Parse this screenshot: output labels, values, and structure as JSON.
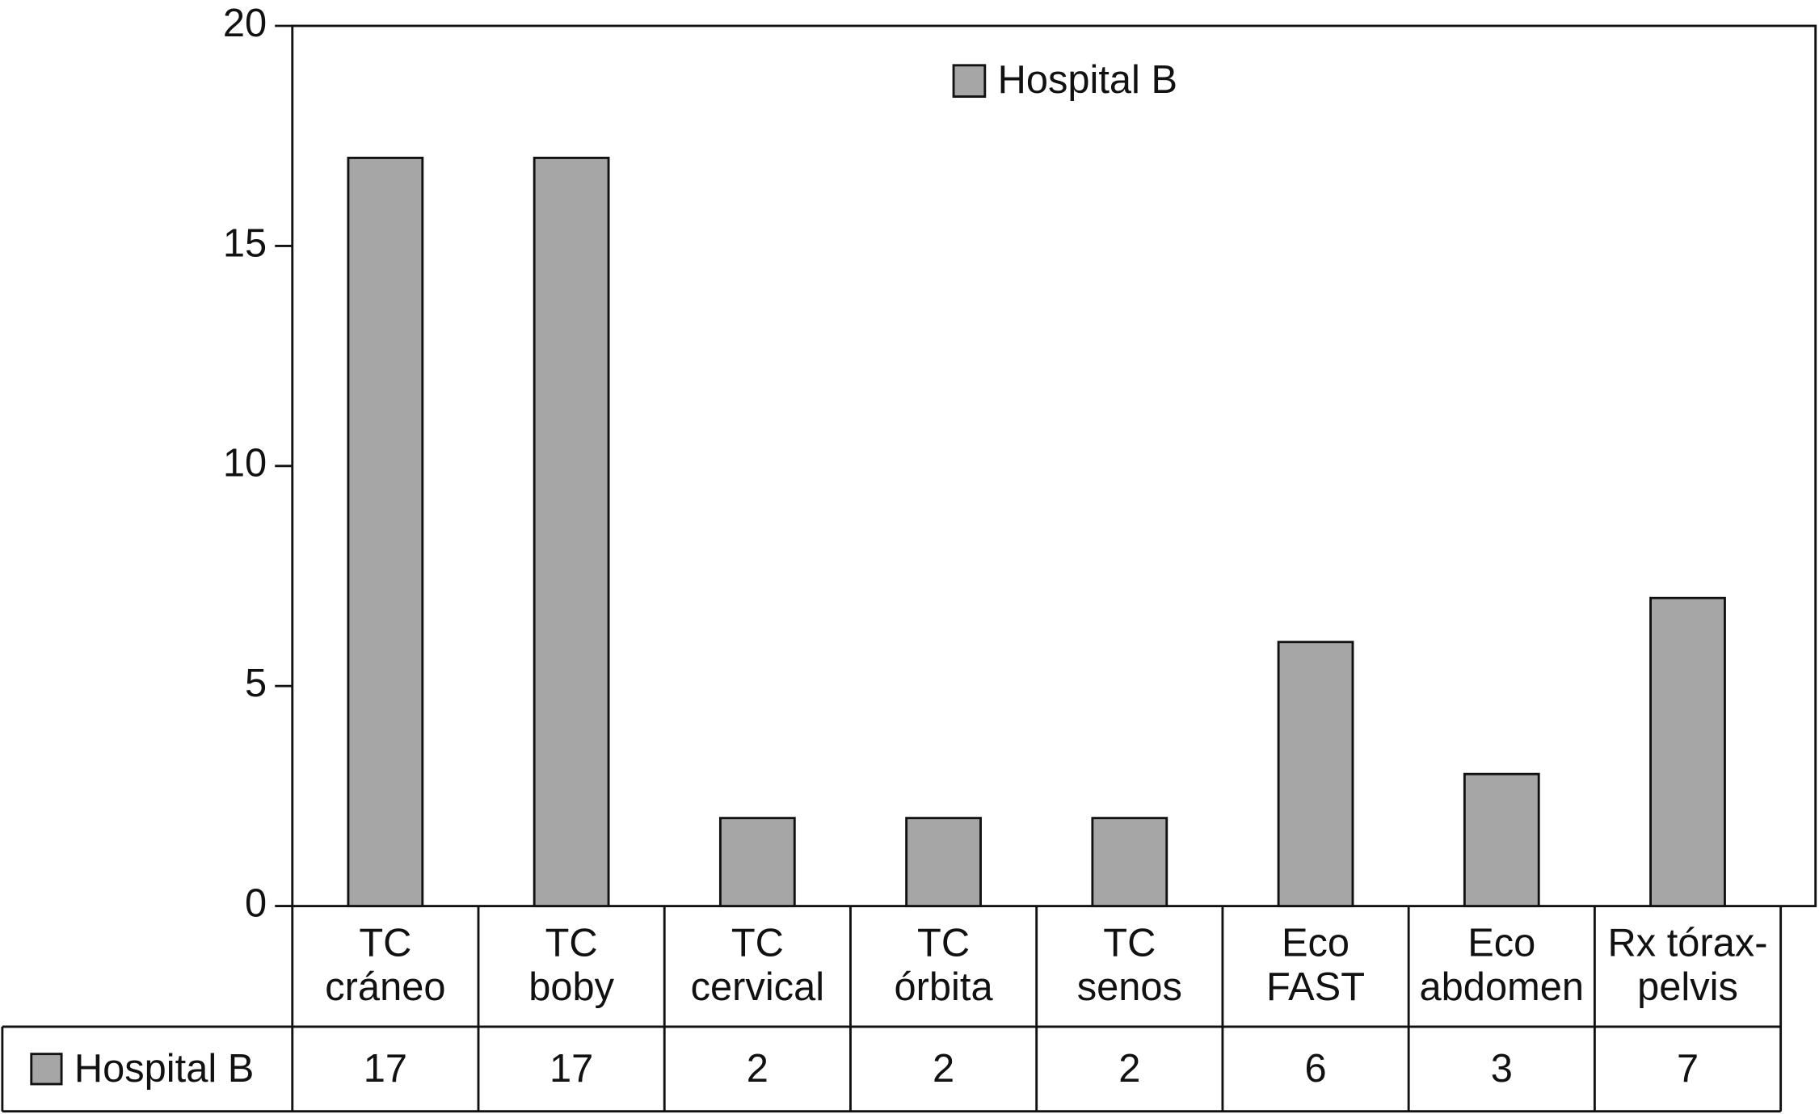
{
  "chart_data": {
    "type": "bar",
    "categories": [
      [
        "TC",
        "cráneo"
      ],
      [
        "TC",
        "boby"
      ],
      [
        "TC",
        "cervical"
      ],
      [
        "TC",
        "órbita"
      ],
      [
        "TC",
        "senos"
      ],
      [
        "Eco",
        "FAST"
      ],
      [
        "Eco",
        "abdomen"
      ],
      [
        "Rx tórax-",
        "pelvis"
      ]
    ],
    "series": [
      {
        "name": "Hospital B",
        "color": "#a6a6a6",
        "values": [
          17,
          17,
          2,
          2,
          2,
          6,
          3,
          7
        ]
      }
    ],
    "ylim": [
      0,
      20
    ],
    "yticks": [
      0,
      5,
      10,
      15,
      20
    ],
    "grid": false,
    "legend": "top-center",
    "data_table": true
  }
}
